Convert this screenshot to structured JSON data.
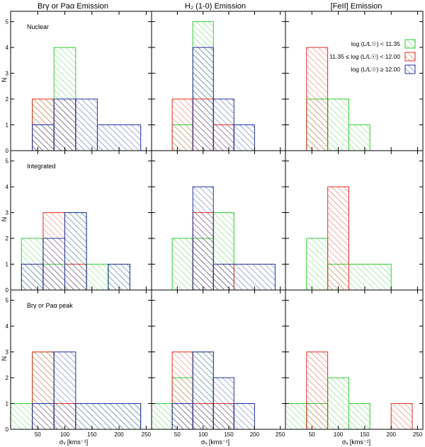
{
  "figure": {
    "column_titles": [
      "Brγ or Paα Emission",
      "H₂ (1-0) Emission",
      "[FeII] Emission"
    ],
    "row_labels": [
      "Nuclear",
      "Integrated",
      "Brγ or Paα peak"
    ],
    "ylabel": "N",
    "xlabel": "σᵥ [kms⁻¹]",
    "x_ticks": [
      50,
      100,
      150,
      200,
      250
    ],
    "y_ticks": [
      0,
      1,
      2,
      3,
      4,
      5
    ],
    "colors": {
      "green": "#33cc33",
      "red": "#e03020",
      "blue": "#2030a0"
    }
  },
  "legend": [
    {
      "color_key": "green",
      "label": "log (L/L☉) < 11.35"
    },
    {
      "color_key": "red",
      "label": "11.35 ≤ log (L/L☉) < 12.00"
    },
    {
      "color_key": "blue",
      "label": "log (L/L☉) ≥ 12.00"
    }
  ],
  "chart_data": {
    "type": "histogram-grid",
    "xlabel": "σᵥ [kms⁻¹]",
    "ylabel": "N",
    "xlim": [
      0,
      260
    ],
    "ylim": [
      0,
      5.4
    ],
    "bin_width": 40,
    "panels": [
      {
        "row": 0,
        "col": 0,
        "series": [
          {
            "name": "green",
            "bins": [
              [
                40,
                80,
                2
              ],
              [
                80,
                120,
                4
              ]
            ]
          },
          {
            "name": "red",
            "bins": [
              [
                40,
                80,
                2
              ],
              [
                80,
                120,
                2
              ]
            ]
          },
          {
            "name": "blue",
            "bins": [
              [
                40,
                80,
                1
              ],
              [
                80,
                120,
                2
              ],
              [
                120,
                160,
                2
              ],
              [
                160,
                240,
                1
              ]
            ]
          }
        ]
      },
      {
        "row": 0,
        "col": 1,
        "series": [
          {
            "name": "green",
            "bins": [
              [
                40,
                80,
                1
              ],
              [
                80,
                120,
                5
              ]
            ]
          },
          {
            "name": "red",
            "bins": [
              [
                40,
                80,
                2
              ],
              [
                80,
                120,
                2
              ],
              [
                120,
                160,
                1
              ]
            ]
          },
          {
            "name": "blue",
            "bins": [
              [
                80,
                120,
                4
              ],
              [
                120,
                160,
                2
              ],
              [
                160,
                200,
                1
              ]
            ]
          }
        ]
      },
      {
        "row": 0,
        "col": 2,
        "series": [
          {
            "name": "green",
            "bins": [
              [
                40,
                80,
                2
              ],
              [
                80,
                120,
                2
              ],
              [
                120,
                160,
                1
              ]
            ]
          },
          {
            "name": "red",
            "bins": [
              [
                40,
                80,
                4
              ]
            ]
          }
        ]
      },
      {
        "row": 1,
        "col": 0,
        "series": [
          {
            "name": "green",
            "bins": [
              [
                20,
                60,
                2
              ],
              [
                60,
                100,
                1
              ],
              [
                100,
                140,
                3
              ],
              [
                140,
                180,
                1
              ],
              [
                180,
                220,
                1
              ]
            ]
          },
          {
            "name": "red",
            "bins": [
              [
                60,
                100,
                3
              ],
              [
                100,
                140,
                1
              ]
            ]
          },
          {
            "name": "blue",
            "bins": [
              [
                20,
                60,
                1
              ],
              [
                60,
                100,
                2
              ],
              [
                100,
                140,
                3
              ],
              [
                180,
                220,
                1
              ]
            ]
          }
        ]
      },
      {
        "row": 1,
        "col": 1,
        "series": [
          {
            "name": "green",
            "bins": [
              [
                40,
                80,
                2
              ],
              [
                80,
                120,
                2
              ],
              [
                120,
                160,
                3
              ]
            ]
          },
          {
            "name": "red",
            "bins": [
              [
                80,
                120,
                3
              ],
              [
                120,
                160,
                1
              ]
            ]
          },
          {
            "name": "blue",
            "bins": [
              [
                80,
                120,
                4
              ],
              [
                120,
                240,
                1
              ]
            ]
          }
        ]
      },
      {
        "row": 1,
        "col": 2,
        "series": [
          {
            "name": "green",
            "bins": [
              [
                40,
                80,
                2
              ],
              [
                80,
                200,
                1
              ]
            ]
          },
          {
            "name": "red",
            "bins": [
              [
                80,
                120,
                4
              ]
            ]
          }
        ]
      },
      {
        "row": 2,
        "col": 0,
        "series": [
          {
            "name": "green",
            "bins": [
              [
                0,
                40,
                1
              ],
              [
                40,
                80,
                3
              ],
              [
                80,
                240,
                1
              ]
            ]
          },
          {
            "name": "red",
            "bins": [
              [
                40,
                80,
                3
              ],
              [
                80,
                120,
                1
              ]
            ]
          },
          {
            "name": "blue",
            "bins": [
              [
                40,
                80,
                1
              ],
              [
                80,
                120,
                3
              ],
              [
                120,
                240,
                1
              ]
            ]
          }
        ]
      },
      {
        "row": 2,
        "col": 1,
        "series": [
          {
            "name": "green",
            "bins": [
              [
                0,
                40,
                1
              ],
              [
                40,
                80,
                2
              ],
              [
                80,
                120,
                3
              ],
              [
                120,
                160,
                1
              ]
            ]
          },
          {
            "name": "red",
            "bins": [
              [
                40,
                80,
                3
              ],
              [
                80,
                120,
                1
              ],
              [
                120,
                160,
                1
              ]
            ]
          },
          {
            "name": "blue",
            "bins": [
              [
                40,
                80,
                1
              ],
              [
                80,
                120,
                3
              ],
              [
                120,
                160,
                2
              ],
              [
                160,
                200,
                1
              ]
            ]
          }
        ]
      },
      {
        "row": 2,
        "col": 2,
        "series": [
          {
            "name": "green",
            "bins": [
              [
                0,
                40,
                1
              ],
              [
                40,
                80,
                1
              ],
              [
                80,
                120,
                2
              ],
              [
                120,
                160,
                1
              ]
            ]
          },
          {
            "name": "red",
            "bins": [
              [
                40,
                80,
                3
              ],
              [
                200,
                240,
                1
              ]
            ]
          }
        ]
      }
    ]
  }
}
